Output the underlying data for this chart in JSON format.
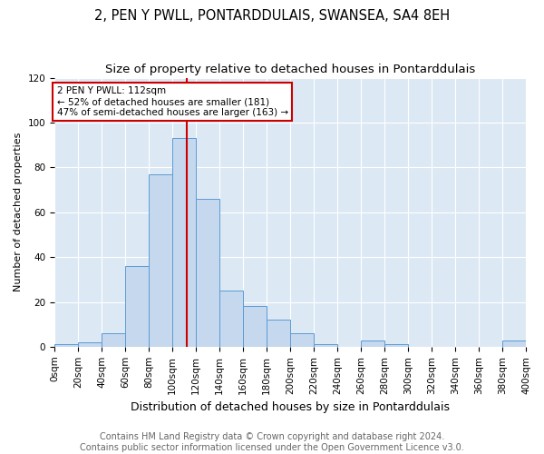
{
  "title": "2, PEN Y PWLL, PONTARDDULAIS, SWANSEA, SA4 8EH",
  "subtitle": "Size of property relative to detached houses in Pontarddulais",
  "xlabel": "Distribution of detached houses by size in Pontarddulais",
  "ylabel": "Number of detached properties",
  "bin_edges": [
    0,
    20,
    40,
    60,
    80,
    100,
    120,
    140,
    160,
    180,
    200,
    220,
    240,
    260,
    280,
    300,
    320,
    340,
    360,
    380,
    400
  ],
  "bar_heights": [
    1,
    2,
    6,
    36,
    77,
    93,
    66,
    25,
    18,
    12,
    6,
    1,
    0,
    3,
    1,
    0,
    0,
    0,
    0,
    3
  ],
  "bar_color": "#c5d8ed",
  "bar_edge_color": "#5b9bd5",
  "vline_x": 112,
  "vline_color": "#cc0000",
  "annotation_text": "2 PEN Y PWLL: 112sqm\n← 52% of detached houses are smaller (181)\n47% of semi-detached houses are larger (163) →",
  "annotation_box_color": "#ffffff",
  "annotation_box_edge": "#cc0000",
  "ylim": [
    0,
    120
  ],
  "yticks": [
    0,
    20,
    40,
    60,
    80,
    100,
    120
  ],
  "background_color": "#dce9f5",
  "footer_text": "Contains HM Land Registry data © Crown copyright and database right 2024.\nContains public sector information licensed under the Open Government Licence v3.0.",
  "title_fontsize": 10.5,
  "subtitle_fontsize": 9.5,
  "xlabel_fontsize": 9,
  "ylabel_fontsize": 8,
  "tick_fontsize": 7.5,
  "footer_fontsize": 7
}
